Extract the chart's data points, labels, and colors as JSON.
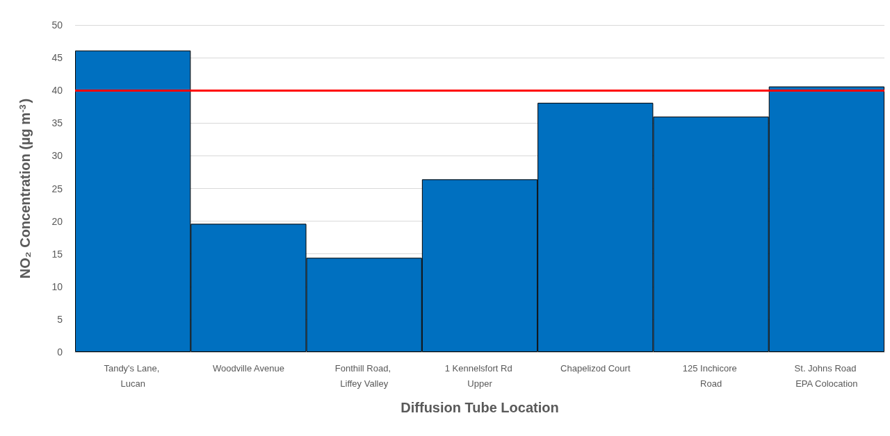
{
  "chart_data": {
    "type": "bar",
    "xlabel": "Diffusion Tube Location",
    "ylabel": "NO₂ Concentration (µg m$^{-3}$)",
    "categories": [
      "Tandy's Lane, Lucan",
      "Woodville Avenue",
      "Fonthill Road, Liffey Valley",
      "1 Kennelsfort Rd Upper",
      "Chapelizod Court",
      "125 Inchicore Road",
      "St. Johns Road EPA Colocation"
    ],
    "values": [
      46.1,
      19.6,
      14.4,
      26.4,
      38.1,
      36.0,
      40.6
    ],
    "color": "#0070c0",
    "ylim": [
      0,
      50
    ],
    "yticks": [
      0,
      5,
      10,
      15,
      20,
      25,
      30,
      35,
      40,
      45,
      50
    ],
    "grid": "y",
    "ref_lines": [
      {
        "axis": "y",
        "value": 40,
        "color": "#ff0000"
      }
    ]
  }
}
